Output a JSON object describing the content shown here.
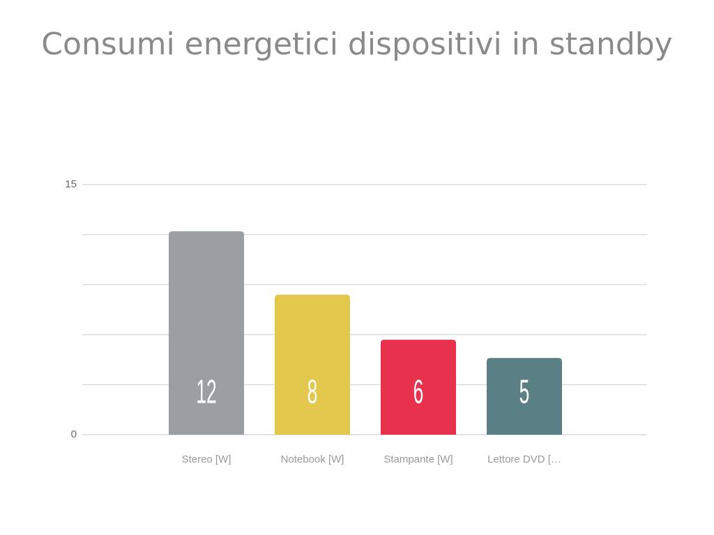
{
  "chart_data": {
    "type": "bar",
    "title": "Consumi energetici dispositivi in standby",
    "categories": [
      "Stereo [W]",
      "Notebook [W]",
      "Stampante [W]",
      "Lettore DVD […"
    ],
    "values": [
      12.2,
      8.4,
      5.7,
      4.6
    ],
    "value_labels": [
      "12",
      "8",
      "6",
      "5"
    ],
    "colors": [
      "#9a9fa3",
      "#e4c84d",
      "#e8314d",
      "#5a8086"
    ],
    "ylim": [
      0,
      15
    ],
    "yticks": [
      0,
      15
    ],
    "minor_grid": [
      3,
      6,
      9,
      12
    ],
    "grid": true
  }
}
